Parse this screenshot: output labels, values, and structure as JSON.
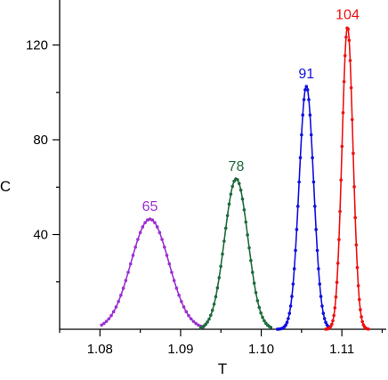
{
  "chart_data": {
    "type": "line",
    "title": "",
    "xlabel": "T",
    "ylabel": "C",
    "xlim": [
      1.075,
      1.1155
    ],
    "ylim": [
      0,
      139
    ],
    "x_ticks_major": [
      "1.08",
      "1.09",
      "1.10",
      "1.11"
    ],
    "x_ticks_minor": [
      1.075,
      1.085,
      1.095,
      1.105,
      1.115
    ],
    "y_ticks_major": [
      "40",
      "80",
      "120"
    ],
    "y_ticks_minor": [
      20,
      60,
      100
    ],
    "grid": false,
    "legend": "none",
    "series": [
      {
        "label": "65",
        "color": "#9b30d0",
        "peak_x": 1.0862,
        "peak_y": 46.5,
        "width": 0.00235,
        "x_start": 1.0802,
        "x_end": 1.0928
      },
      {
        "label": "78",
        "color": "#1e6b3c",
        "peak_x": 1.0969,
        "peak_y": 63.5,
        "width": 0.00145,
        "x_start": 1.0925,
        "x_end": 1.1012
      },
      {
        "label": "91",
        "color": "#1010e0",
        "peak_x": 1.1056,
        "peak_y": 102.5,
        "width": 0.0009,
        "x_start": 1.102,
        "x_end": 1.1083
      },
      {
        "label": "104",
        "color": "#ee1111",
        "peak_x": 1.1107,
        "peak_y": 127.5,
        "width": 0.00068,
        "x_start": 1.108,
        "x_end": 1.1133
      }
    ]
  }
}
